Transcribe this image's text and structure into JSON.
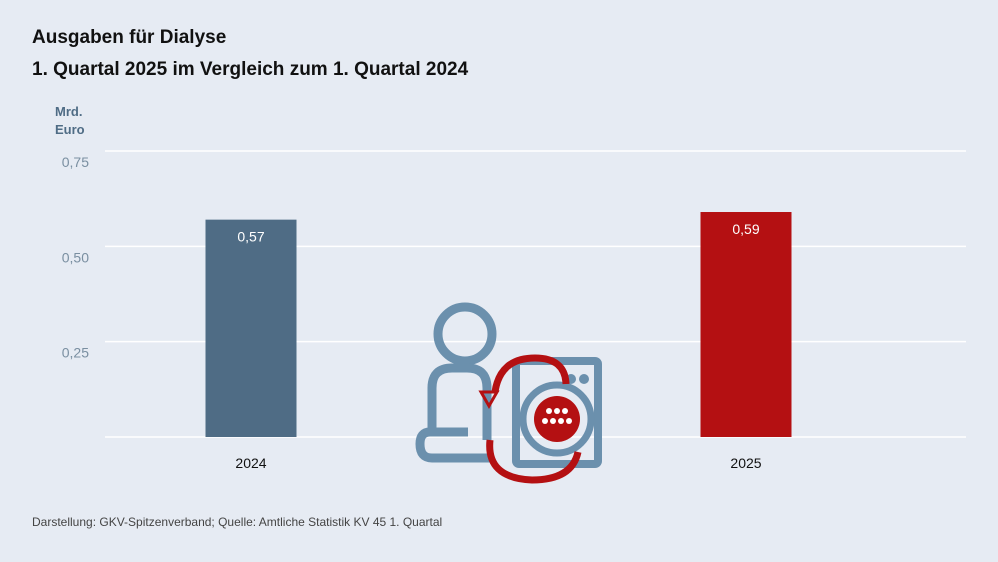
{
  "title": "Ausgaben für Dialyse",
  "subtitle": "1. Quartal 2025 im Vergleich zum 1. Quartal 2024",
  "unit_line1": "Mrd.",
  "unit_line2": "Euro",
  "footer": "Darstellung: GKV-Spitzenverband; Quelle: Amtliche Statistik KV 45 1. Quartal",
  "icon": "dialysis-patient-machine-icon",
  "chart_data": {
    "type": "bar",
    "categories": [
      "2024",
      "2025"
    ],
    "values": [
      0.57,
      0.59
    ],
    "value_labels": [
      "0,57",
      "0,59"
    ],
    "bar_colors": [
      "#4f6c85",
      "#b41012"
    ],
    "ylabel": "Mrd. Euro",
    "ylim": [
      0,
      0.75
    ],
    "yticks": [
      0.25,
      0.5,
      0.75
    ],
    "ytick_labels": [
      "0,25",
      "0,50",
      "0,75"
    ],
    "grid": true
  }
}
